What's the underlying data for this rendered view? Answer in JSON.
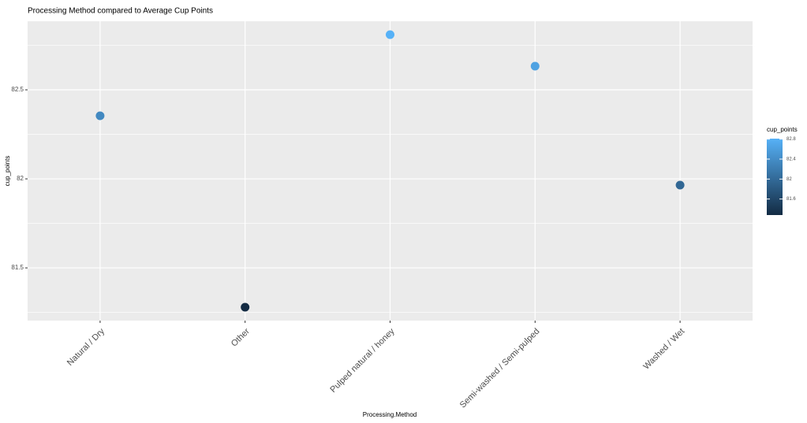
{
  "chart_data": {
    "type": "scatter",
    "title": "Processing Method compared to Average Cup Points",
    "x_label": "Processing.Method",
    "y_label": "cup_points",
    "categories": [
      "Natural / Dry",
      "Other",
      "Pulped natural / honey",
      "Semi-washed / Semi-pulped",
      "Washed / Wet"
    ],
    "values": [
      82.354,
      81.279,
      82.81,
      82.633,
      81.965
    ],
    "ylim": [
      81.204,
      82.885
    ],
    "yticks": [
      81.5,
      82.0,
      82.5
    ],
    "y_minor_gridlines": [
      81.25,
      81.75,
      82.25,
      82.75
    ],
    "grid": true,
    "legend": {
      "title": "cup_points",
      "low_color": "#132b43",
      "high_color": "#56b1f7",
      "limits": [
        81.279,
        82.81
      ],
      "ticks": [
        81.6,
        82.0,
        82.4,
        82.8
      ],
      "position": "right"
    }
  }
}
